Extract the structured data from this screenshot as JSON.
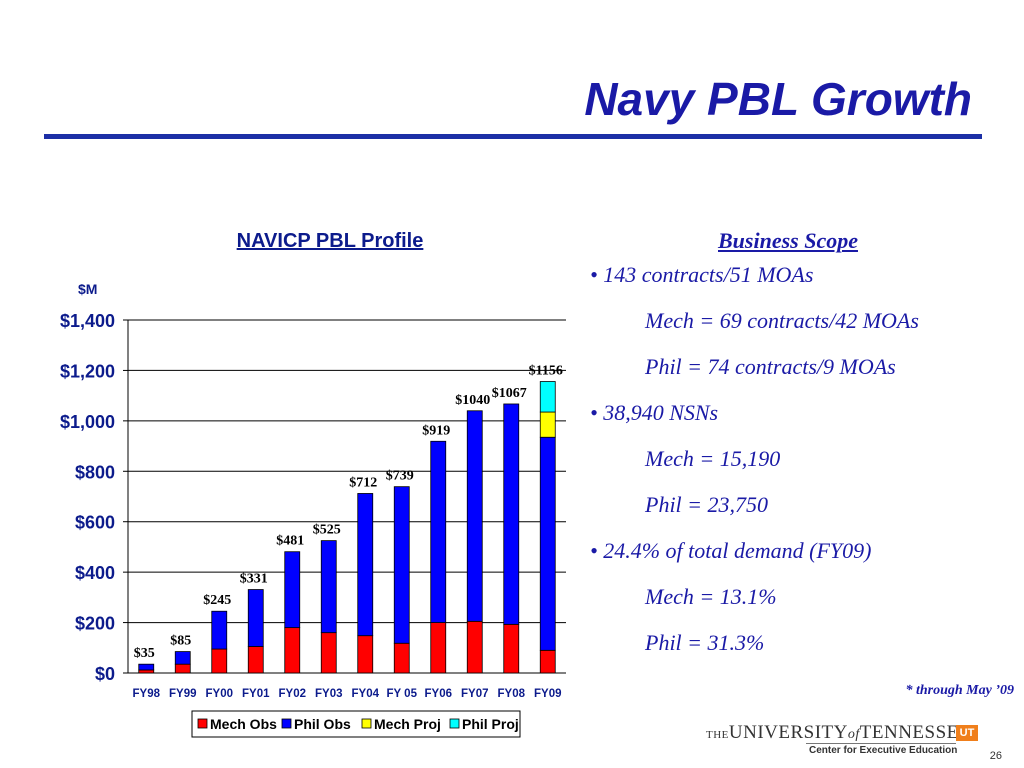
{
  "slide": {
    "title": "Navy PBL Growth",
    "footnote": "* through May ’09",
    "page_number": "26"
  },
  "logo": {
    "the": "THE",
    "university": "UNIVERSITY",
    "of": "of",
    "tennessee": "TENNESSEE",
    "badge": "UT",
    "subtitle": "Center for Executive Education"
  },
  "chart_data": {
    "type": "bar",
    "stacked": true,
    "title": "NAVICP PBL Profile",
    "ylabel": "$M",
    "xlabel": "",
    "ylim": [
      0,
      1400
    ],
    "ytick_values": [
      0,
      200,
      400,
      600,
      800,
      1000,
      1200,
      1400
    ],
    "ytick_labels": [
      "$0",
      "$200",
      "$400",
      "$600",
      "$800",
      "$1,000",
      "$1,200",
      "$1,400"
    ],
    "grid": true,
    "legend_position": "bottom",
    "categories": [
      "FY98",
      "FY99",
      "FY00",
      "FY01",
      "FY02",
      "FY03",
      "FY04",
      "FY 05",
      "FY06",
      "FY07",
      "FY08",
      "FY09"
    ],
    "series": [
      {
        "name": "Mech Obs",
        "color": "#ff0000",
        "values": [
          12,
          35,
          95,
          105,
          180,
          160,
          148,
          118,
          200,
          205,
          193,
          90
        ]
      },
      {
        "name": "Phil Obs",
        "color": "#0000ff",
        "values": [
          23,
          50,
          150,
          226,
          301,
          365,
          564,
          621,
          719,
          835,
          874,
          845
        ]
      },
      {
        "name": "Mech Proj",
        "color": "#ffff00",
        "values": [
          0,
          0,
          0,
          0,
          0,
          0,
          0,
          0,
          0,
          0,
          0,
          100
        ]
      },
      {
        "name": "Phil Proj",
        "color": "#00ffff",
        "values": [
          0,
          0,
          0,
          0,
          0,
          0,
          0,
          0,
          0,
          0,
          0,
          121
        ]
      }
    ],
    "totals": [
      35,
      85,
      245,
      331,
      481,
      525,
      712,
      739,
      919,
      1040,
      1067,
      1156
    ],
    "data_labels": [
      "$35",
      "$85",
      "$245",
      "$331",
      "$481",
      "$525",
      "$712",
      "$739",
      "$919",
      "$1040",
      "$1067",
      "$1156"
    ]
  },
  "scope": {
    "heading": "Business Scope",
    "lines": [
      {
        "text": "• 143 contracts/51 MOAs",
        "indent": false
      },
      {
        "text": "Mech = 69 contracts/42 MOAs",
        "indent": true
      },
      {
        "text": "Phil = 74 contracts/9 MOAs",
        "indent": true
      },
      {
        "text": "• 38,940 NSNs",
        "indent": false
      },
      {
        "text": "Mech = 15,190",
        "indent": true
      },
      {
        "text": "Phil = 23,750",
        "indent": true
      },
      {
        "text": "• 24.4% of total demand (FY09)",
        "indent": false
      },
      {
        "text": "Mech = 13.1%",
        "indent": true
      },
      {
        "text": "Phil =  31.3%",
        "indent": true
      }
    ]
  }
}
